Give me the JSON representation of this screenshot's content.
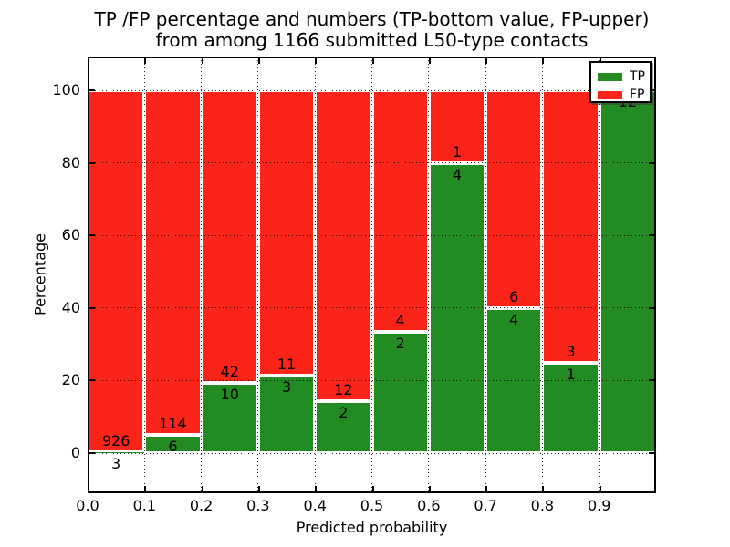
{
  "title": {
    "line1": "TP /FP percentage and numbers (TP-bottom value, FP-upper)",
    "line2": "from among 1166 submitted L50-type contacts"
  },
  "axes": {
    "x_label": "Predicted probability",
    "y_label": "Percentage"
  },
  "legend": {
    "items": [
      {
        "label": "TP",
        "color": "#228b22"
      },
      {
        "label": "FP",
        "color": "#fa2419"
      }
    ]
  },
  "chart_data": {
    "type": "bar",
    "stacked": true,
    "title": "TP /FP percentage and numbers (TP-bottom value, FP-upper)\nfrom among 1166 submitted L50-type contacts",
    "xlabel": "Predicted probability",
    "ylabel": "Percentage",
    "total_contacts": 1166,
    "xlim": [
      0.0,
      1.0
    ],
    "ylim_display": [
      -11,
      109
    ],
    "x_tick_labels": [
      "0.0",
      "0.1",
      "0.2",
      "0.3",
      "0.4",
      "0.5",
      "0.6",
      "0.7",
      "0.8",
      "0.9"
    ],
    "y_ticks": [
      0,
      20,
      40,
      60,
      80,
      100
    ],
    "grid": "dotted",
    "legend_position": "upper right",
    "series": [
      {
        "name": "TP",
        "color": "#228b22"
      },
      {
        "name": "FP",
        "color": "#fa2419"
      }
    ],
    "bins": [
      {
        "x_start": 0.0,
        "x_end": 0.1,
        "tp": 3,
        "fp": 926,
        "tp_percent": 0.32
      },
      {
        "x_start": 0.1,
        "x_end": 0.2,
        "tp": 6,
        "fp": 114,
        "tp_percent": 5.0
      },
      {
        "x_start": 0.2,
        "x_end": 0.3,
        "tp": 10,
        "fp": 42,
        "tp_percent": 19.23
      },
      {
        "x_start": 0.3,
        "x_end": 0.4,
        "tp": 3,
        "fp": 11,
        "tp_percent": 21.43
      },
      {
        "x_start": 0.4,
        "x_end": 0.5,
        "tp": 2,
        "fp": 12,
        "tp_percent": 14.29
      },
      {
        "x_start": 0.5,
        "x_end": 0.6,
        "tp": 2,
        "fp": 4,
        "tp_percent": 33.33
      },
      {
        "x_start": 0.6,
        "x_end": 0.7,
        "tp": 4,
        "fp": 1,
        "tp_percent": 80.0
      },
      {
        "x_start": 0.7,
        "x_end": 0.8,
        "tp": 4,
        "fp": 6,
        "tp_percent": 40.0
      },
      {
        "x_start": 0.8,
        "x_end": 0.9,
        "tp": 1,
        "fp": 3,
        "tp_percent": 25.0
      },
      {
        "x_start": 0.9,
        "x_end": 1.0,
        "tp": 12,
        "fp": 0,
        "tp_percent": 100.0
      }
    ]
  }
}
